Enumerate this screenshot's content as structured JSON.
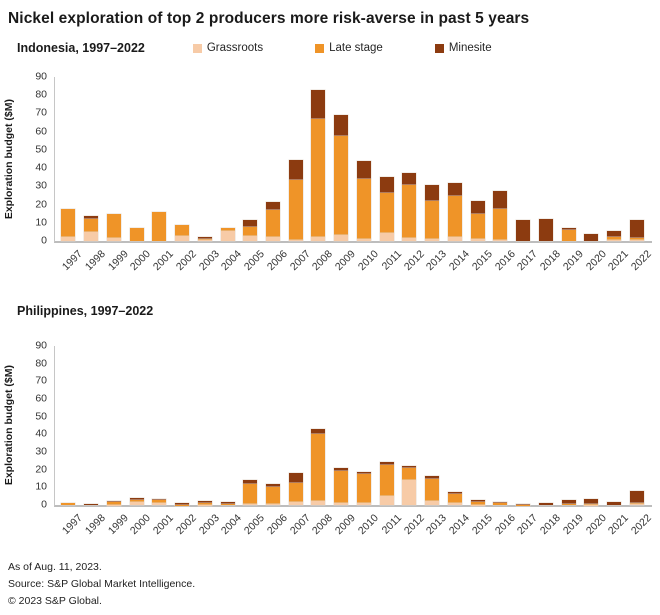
{
  "title": "Nickel exploration of top 2 producers more risk-averse in past 5 years",
  "legend": [
    {
      "label": "Grassroots",
      "color": "#F7CBA7"
    },
    {
      "label": "Late stage",
      "color": "#EF9428"
    },
    {
      "label": "Minesite",
      "color": "#8C3B10"
    }
  ],
  "footer": {
    "as_of": "As of Aug. 11, 2023.",
    "source": "Source: S&P Global Market Intelligence.",
    "copyright": "© 2023 S&P Global."
  },
  "chart_data": [
    {
      "type": "bar",
      "stacked": true,
      "title": "Indonesia, 1997–2022",
      "ylabel": "Exploration budget ($M)",
      "ylim": [
        0,
        90
      ],
      "ytick_step": 10,
      "grid": false,
      "legend_position": "top",
      "categories": [
        "1997",
        "1998",
        "1999",
        "2000",
        "2001",
        "2002",
        "2003",
        "2004",
        "2005",
        "2006",
        "2007",
        "2008",
        "2009",
        "2010",
        "2011",
        "2012",
        "2013",
        "2014",
        "2015",
        "2016",
        "2017",
        "2018",
        "2019",
        "2020",
        "2021",
        "2022"
      ],
      "series": [
        {
          "name": "Grassroots",
          "color": "#F7CBA7",
          "values": [
            2.0,
            4.7,
            1.5,
            0,
            0,
            2.5,
            0.3,
            5.3,
            2.5,
            2.4,
            0.5,
            2.3,
            3.2,
            1.3,
            4.5,
            1.5,
            1.0,
            2.1,
            1.3,
            0.5,
            0,
            0,
            0,
            0,
            0.3,
            0.4
          ]
        },
        {
          "name": "Late stage",
          "color": "#EF9428",
          "values": [
            15.3,
            7.5,
            13.3,
            7.0,
            16.0,
            6.3,
            0.8,
            1.7,
            5.3,
            14.5,
            33.0,
            64.5,
            54.5,
            32.8,
            22.0,
            29.0,
            21.0,
            22.7,
            13.5,
            17.3,
            0,
            0,
            6.3,
            0,
            1.8,
            1.1
          ]
        },
        {
          "name": "Minesite",
          "color": "#8C3B10",
          "values": [
            0,
            1.3,
            0,
            0,
            0,
            0,
            1.0,
            0,
            3.5,
            4.7,
            11.0,
            16.1,
            11.3,
            9.6,
            8.5,
            6.6,
            8.5,
            7.1,
            7.2,
            9.4,
            11.6,
            12.2,
            1.0,
            4.1,
            3.3,
            10.3
          ]
        }
      ]
    },
    {
      "type": "bar",
      "stacked": true,
      "title": "Philippines, 1997–2022",
      "ylabel": "Exploration budget ($M)",
      "ylim": [
        0,
        90
      ],
      "ytick_step": 10,
      "grid": false,
      "categories": [
        "1997",
        "1998",
        "1999",
        "2000",
        "2001",
        "2002",
        "2003",
        "2004",
        "2005",
        "2006",
        "2007",
        "2008",
        "2009",
        "2010",
        "2011",
        "2012",
        "2013",
        "2014",
        "2015",
        "2016",
        "2017",
        "2018",
        "2019",
        "2020",
        "2021",
        "2022"
      ],
      "series": [
        {
          "name": "Grassroots",
          "color": "#F7CBA7",
          "values": [
            0,
            0,
            0.2,
            1.7,
            1.4,
            0,
            0.2,
            0,
            0.3,
            0.5,
            1.5,
            2.1,
            1.0,
            1.0,
            5.3,
            14.2,
            2.0,
            1.0,
            0.2,
            0,
            0,
            0,
            0,
            0.2,
            0,
            0.3
          ]
        },
        {
          "name": "Late stage",
          "color": "#EF9428",
          "values": [
            1.0,
            0,
            1.3,
            1.1,
            1.3,
            0.2,
            1.0,
            0.3,
            11.5,
            9.5,
            10.8,
            37.9,
            18.4,
            16.6,
            17.5,
            6.6,
            12.9,
            5.0,
            1.7,
            1.4,
            0.2,
            0,
            0.3,
            0.2,
            0,
            1.0
          ]
        },
        {
          "name": "Minesite",
          "color": "#8C3B10",
          "values": [
            0,
            0.8,
            0.6,
            0.9,
            0.6,
            0.7,
            0.9,
            1.2,
            2.4,
            1.9,
            6.0,
            2.8,
            1.7,
            1.1,
            1.5,
            1.5,
            1.3,
            1.5,
            0.9,
            0.4,
            0.6,
            1.1,
            2.3,
            2.8,
            1.9,
            6.8
          ]
        }
      ]
    }
  ]
}
